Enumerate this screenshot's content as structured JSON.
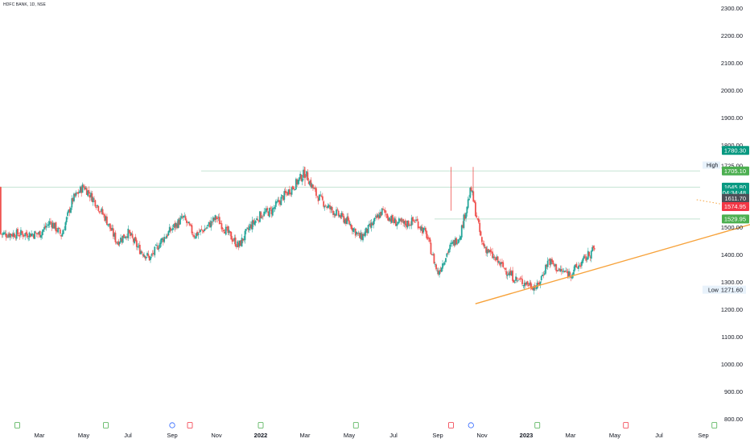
{
  "header": {
    "ticker": "HDFC BANK, 1D, NSE"
  },
  "colors": {
    "up": "#26a69a",
    "down": "#ef5350",
    "trend": "#f7a23a",
    "grid_line": "#c5e3d3",
    "target_zone": "#e8f6f2",
    "stop_zone": "#fbe4e6",
    "axis_text": "#131722"
  },
  "chart_data": {
    "type": "candlestick",
    "title": "",
    "ylim": [
      800,
      2300
    ],
    "y_ticks": [
      "2300.00",
      "2200.00",
      "2100.00",
      "2000.00",
      "1900.00",
      "1800.00",
      "1725.00",
      "1500.00",
      "1400.00",
      "1300.00",
      "1200.00",
      "1100.00",
      "1000.00",
      "900.00",
      "800.00"
    ],
    "x_labels": [
      "Mar",
      "May",
      "Jul",
      "Sep",
      "Nov",
      "2022",
      "Mar",
      "May",
      "Jul",
      "Sep",
      "Nov",
      "2023",
      "Mar",
      "May",
      "Jul",
      "Sep"
    ],
    "x_label_bold": [
      false,
      false,
      false,
      false,
      false,
      true,
      false,
      false,
      false,
      false,
      false,
      true,
      false,
      false,
      false,
      false
    ],
    "close_path": [
      [
        0,
        1475
      ],
      [
        0.5,
        1520
      ],
      [
        1,
        1470
      ],
      [
        1.5,
        1600
      ],
      [
        2.0,
        1650
      ],
      [
        2.5,
        1595
      ],
      [
        3.0,
        1530
      ],
      [
        3.5,
        1445
      ],
      [
        4.0,
        1480
      ],
      [
        4.5,
        1420
      ],
      [
        5.0,
        1385
      ],
      [
        5.5,
        1450
      ],
      [
        6.0,
        1495
      ],
      [
        6.5,
        1535
      ],
      [
        7.0,
        1470
      ],
      [
        7.5,
        1495
      ],
      [
        8.0,
        1535
      ],
      [
        8.5,
        1480
      ],
      [
        9.0,
        1430
      ],
      [
        9.5,
        1500
      ],
      [
        10.0,
        1545
      ],
      [
        10.5,
        1560
      ],
      [
        11.0,
        1610
      ],
      [
        11.5,
        1650
      ],
      [
        12.0,
        1700
      ],
      [
        12.5,
        1620
      ],
      [
        13.0,
        1575
      ],
      [
        13.5,
        1545
      ],
      [
        14.0,
        1515
      ],
      [
        14.5,
        1460
      ],
      [
        15.0,
        1505
      ],
      [
        15.5,
        1560
      ],
      [
        16.0,
        1520
      ],
      [
        16.5,
        1510
      ],
      [
        17.0,
        1525
      ],
      [
        17.5,
        1470
      ],
      [
        18.0,
        1330
      ],
      [
        18.5,
        1420
      ],
      [
        19.0,
        1470
      ],
      [
        19.5,
        1640
      ],
      [
        20.0,
        1440
      ],
      [
        20.5,
        1390
      ],
      [
        21.0,
        1350
      ],
      [
        21.5,
        1310
      ],
      [
        22.0,
        1295
      ],
      [
        22.5,
        1280
      ],
      [
        23.0,
        1380
      ],
      [
        23.5,
        1340
      ],
      [
        24.0,
        1330
      ],
      [
        24.5,
        1370
      ],
      [
        25.0,
        1415
      ],
      [
        25.5,
        1450
      ],
      [
        26.0,
        1490
      ],
      [
        26.5,
        1505
      ],
      [
        27.0,
        1525
      ],
      [
        27.5,
        1455
      ],
      [
        28.0,
        1385
      ],
      [
        28.5,
        1430
      ],
      [
        29.0,
        1465
      ],
      [
        29.5,
        1510
      ],
      [
        30.0,
        1560
      ],
      [
        30.5,
        1640
      ],
      [
        31.0,
        1625
      ],
      [
        31.5,
        1640
      ],
      [
        32.0,
        1660
      ],
      [
        32.5,
        1620
      ],
      [
        33.0,
        1650
      ],
      [
        33.5,
        1690
      ],
      [
        34.0,
        1645
      ],
      [
        34.5,
        1600
      ],
      [
        35.0,
        1575
      ],
      [
        35.5,
        1545
      ],
      [
        36.0,
        1600
      ],
      [
        36.5,
        1646
      ]
    ],
    "x_months": 36.5,
    "horizontal_levels": [
      1705.1,
      1645.8,
      1529.95
    ],
    "trendlines": [
      {
        "from": [
          19.7,
          1220
        ],
        "to": [
          40.5,
          1705
        ],
        "style": "solid"
      },
      {
        "from": [
          32.4,
          1705
        ],
        "to": [
          37.7,
          1510
        ],
        "style": "solid"
      },
      {
        "from": [
          29.7,
          1600
        ],
        "to": [
          37.7,
          1487
        ],
        "style": "dotted"
      }
    ],
    "position": {
      "x_start": 34.3,
      "x_end": 38.2,
      "target": 1780.3,
      "entry": 1611.7,
      "stop": 1574.95
    },
    "price_tags": [
      {
        "label": "1780.30",
        "value": 1780.3,
        "color": "#089981",
        "text_color": "#ffffff"
      },
      {
        "label": "1705.10",
        "value": 1705.1,
        "color": "#4caf50",
        "text_color": "#ffffff"
      },
      {
        "label": "1645.80",
        "value": 1645.8,
        "color": "#089981",
        "text_color": "#ffffff"
      },
      {
        "label": "04:34:48",
        "value": 1625.5,
        "color": "#089981",
        "text_color": "#ffffff"
      },
      {
        "label": "1611.70",
        "value": 1605.0,
        "color": "#4d4f58",
        "text_color": "#ffffff"
      },
      {
        "label": "1574.95",
        "value": 1574.95,
        "color": "#f23645",
        "text_color": "#ffffff"
      },
      {
        "label": "1529.95",
        "value": 1529.95,
        "color": "#4caf50",
        "text_color": "#ffffff"
      }
    ],
    "high_label": {
      "text": "High",
      "value": "1725.00"
    },
    "low_label": {
      "text": "Low",
      "value": "1271.60"
    },
    "event_markers": [
      {
        "type": "E",
        "month": -1.0
      },
      {
        "type": "E",
        "month": 3.0
      },
      {
        "type": "D",
        "month": 6.0
      },
      {
        "type": "S",
        "month": 6.8
      },
      {
        "type": "E",
        "month": 10.0
      },
      {
        "type": "E",
        "month": 14.3
      },
      {
        "type": "S",
        "month": 18.6
      },
      {
        "type": "D",
        "month": 19.5
      },
      {
        "type": "E",
        "month": 22.5
      },
      {
        "type": "S",
        "month": 26.5
      },
      {
        "type": "E",
        "month": 30.5
      },
      {
        "type": "D",
        "month": 35.0
      },
      {
        "type": "S",
        "month": 35.2
      }
    ]
  }
}
